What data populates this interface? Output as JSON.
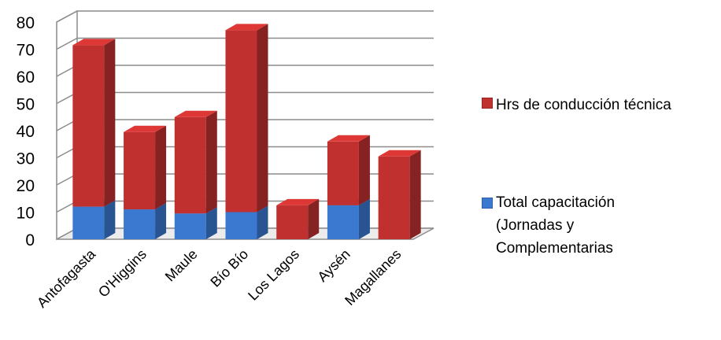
{
  "chart_data": {
    "type": "bar",
    "stacked": true,
    "three_d": true,
    "categories": [
      "Antofagasta",
      "O'Higgins",
      "Maule",
      "Bío Bío",
      "Los Lagos",
      "Aysén",
      "Magallanes"
    ],
    "series": [
      {
        "name": "Total capacitación (Jornadas y Complementarias",
        "color": "#3b78d0",
        "values": [
          12,
          11,
          9.5,
          10,
          0,
          12.5,
          0
        ]
      },
      {
        "name": "Hrs de conducción técnica",
        "color": "#c0302f",
        "values": [
          59.5,
          28.5,
          35.5,
          67,
          12.5,
          23.5,
          30.5
        ]
      }
    ],
    "yticks": [
      "0",
      "10",
      "20",
      "30",
      "40",
      "50",
      "60",
      "70",
      "80"
    ],
    "ylim": [
      0,
      80
    ],
    "grid": true,
    "legend_position": "right"
  }
}
